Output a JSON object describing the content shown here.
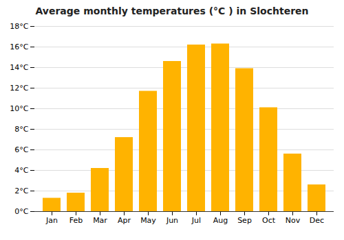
{
  "chart_data": {
    "type": "bar",
    "title": "Average monthly temperatures (°C ) in Slochteren",
    "categories": [
      "Jan",
      "Feb",
      "Mar",
      "Apr",
      "May",
      "Jun",
      "Jul",
      "Aug",
      "Sep",
      "Oct",
      "Nov",
      "Dec"
    ],
    "values": [
      1.3,
      1.8,
      4.2,
      7.2,
      11.7,
      14.6,
      16.2,
      16.3,
      13.9,
      10.1,
      5.6,
      2.6
    ],
    "color": "#FFB300",
    "ylim": [
      0,
      18
    ],
    "yticks": [
      {
        "value": 0,
        "label": "0°C"
      },
      {
        "value": 2,
        "label": "2°C"
      },
      {
        "value": 4,
        "label": "4°C"
      },
      {
        "value": 6,
        "label": "6°C"
      },
      {
        "value": 8,
        "label": "8°C"
      },
      {
        "value": 10,
        "label": "10°C"
      },
      {
        "value": 12,
        "label": "12°C"
      },
      {
        "value": 14,
        "label": "14°C"
      },
      {
        "value": 16,
        "label": "16°C"
      },
      {
        "value": 18,
        "label": "18°C"
      }
    ],
    "grid": true
  }
}
